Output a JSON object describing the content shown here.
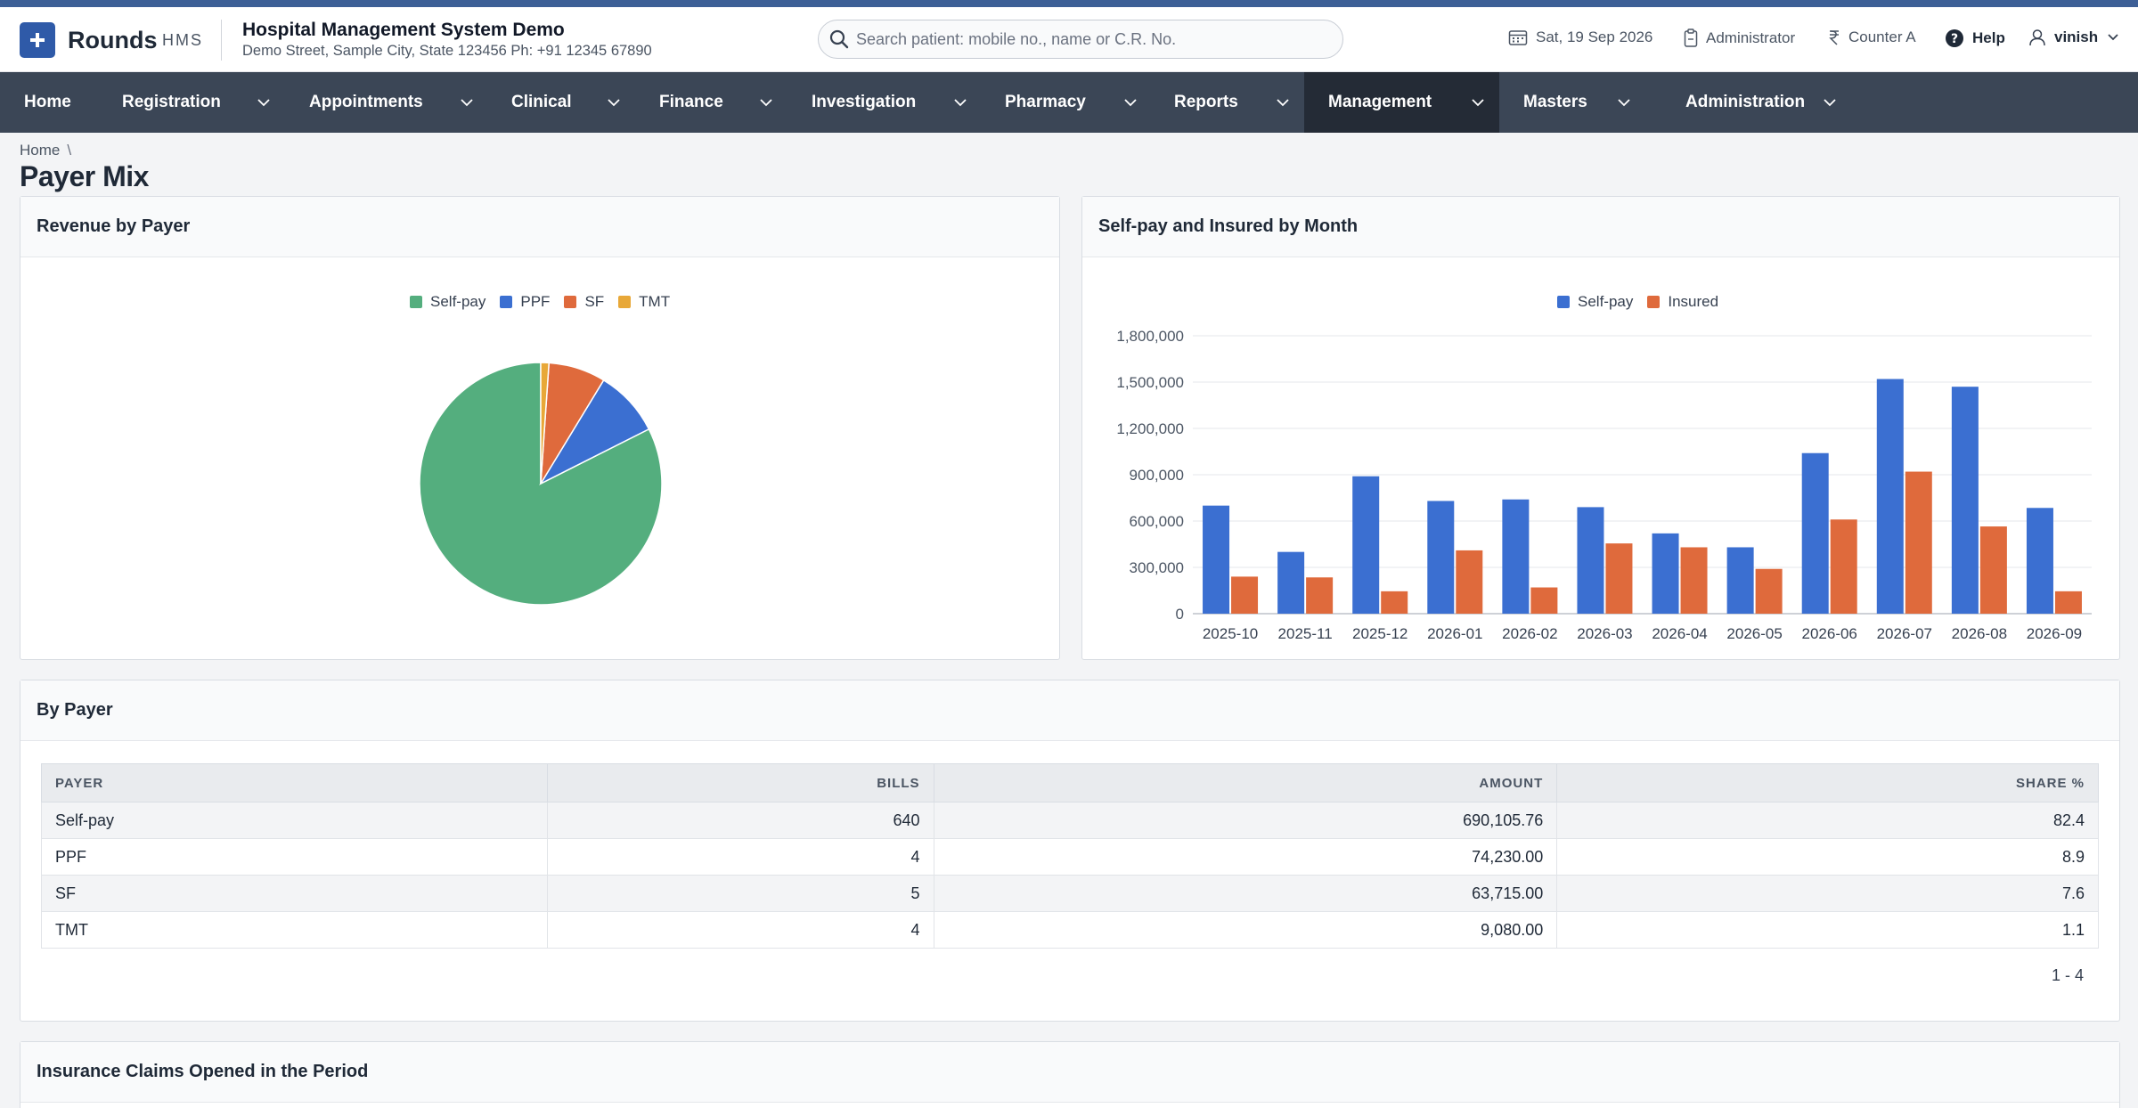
{
  "app": {
    "name": "Rounds",
    "suffix": "HMS",
    "org_name": "Hospital Management System Demo",
    "org_address": "Demo Street, Sample City, State 123456 Ph: +91 12345 67890"
  },
  "search": {
    "placeholder": "Search patient: mobile no., name or C.R. No."
  },
  "header": {
    "date": "Sat, 19 Sep 2026",
    "role": "Administrator",
    "counter": "Counter A",
    "help": "Help",
    "user": "vinish"
  },
  "nav": [
    {
      "label": "Home"
    },
    {
      "label": "Registration"
    },
    {
      "label": "Appointments"
    },
    {
      "label": "Clinical"
    },
    {
      "label": "Finance"
    },
    {
      "label": "Investigation"
    },
    {
      "label": "Pharmacy"
    },
    {
      "label": "Reports"
    },
    {
      "label": "Management"
    },
    {
      "label": "Masters"
    },
    {
      "label": "Administration"
    }
  ],
  "breadcrumb": {
    "home": "Home",
    "sep": "\\"
  },
  "page_title": "Payer Mix",
  "colors": {
    "self_pay": "#54ae7e",
    "ppf": "#3b6fd1",
    "sf": "#df6a3c",
    "tmt": "#e8a838",
    "insured": "#df6a3c",
    "bar_self_pay": "#3b6fd1"
  },
  "cards": {
    "revenue_title": "Revenue by Payer",
    "monthly_title": "Self-pay and Insured by Month",
    "by_payer_title": "By Payer",
    "claims_title": "Insurance Claims Opened in the Period"
  },
  "chart_data": [
    {
      "type": "pie",
      "title": "Revenue by Payer",
      "labels": [
        "Self-pay",
        "PPF",
        "SF",
        "TMT"
      ],
      "values": [
        690105.76,
        74230.0,
        63715.0,
        9080.0
      ],
      "legend": "top"
    },
    {
      "type": "bar",
      "title": "Self-pay and Insured by Month",
      "categories": [
        "2025-10",
        "2025-11",
        "2025-12",
        "2026-01",
        "2026-02",
        "2026-03",
        "2026-04",
        "2026-05",
        "2026-06",
        "2026-07",
        "2026-08",
        "2026-09"
      ],
      "series": [
        {
          "name": "Self-pay",
          "values": [
            700000,
            400000,
            890000,
            730000,
            740000,
            690000,
            520000,
            430000,
            1040000,
            1520000,
            1470000,
            685000
          ]
        },
        {
          "name": "Insured",
          "values": [
            240000,
            235000,
            145000,
            410000,
            170000,
            455000,
            430000,
            290000,
            610000,
            920000,
            565000,
            145000
          ]
        }
      ],
      "yticks": [
        "0",
        "300,000",
        "600,000",
        "900,000",
        "1,200,000",
        "1,500,000",
        "1,800,000"
      ],
      "ylim": [
        0,
        1800000
      ],
      "grid": true,
      "legend": "top"
    }
  ],
  "table": {
    "columns": [
      "PAYER",
      "BILLS",
      "AMOUNT",
      "SHARE %"
    ],
    "rows": [
      [
        "Self-pay",
        "640",
        "690,105.76",
        "82.4"
      ],
      [
        "PPF",
        "4",
        "74,230.00",
        "8.9"
      ],
      [
        "SF",
        "5",
        "63,715.00",
        "7.6"
      ],
      [
        "TMT",
        "4",
        "9,080.00",
        "1.1"
      ]
    ],
    "pager": "1 - 4"
  }
}
